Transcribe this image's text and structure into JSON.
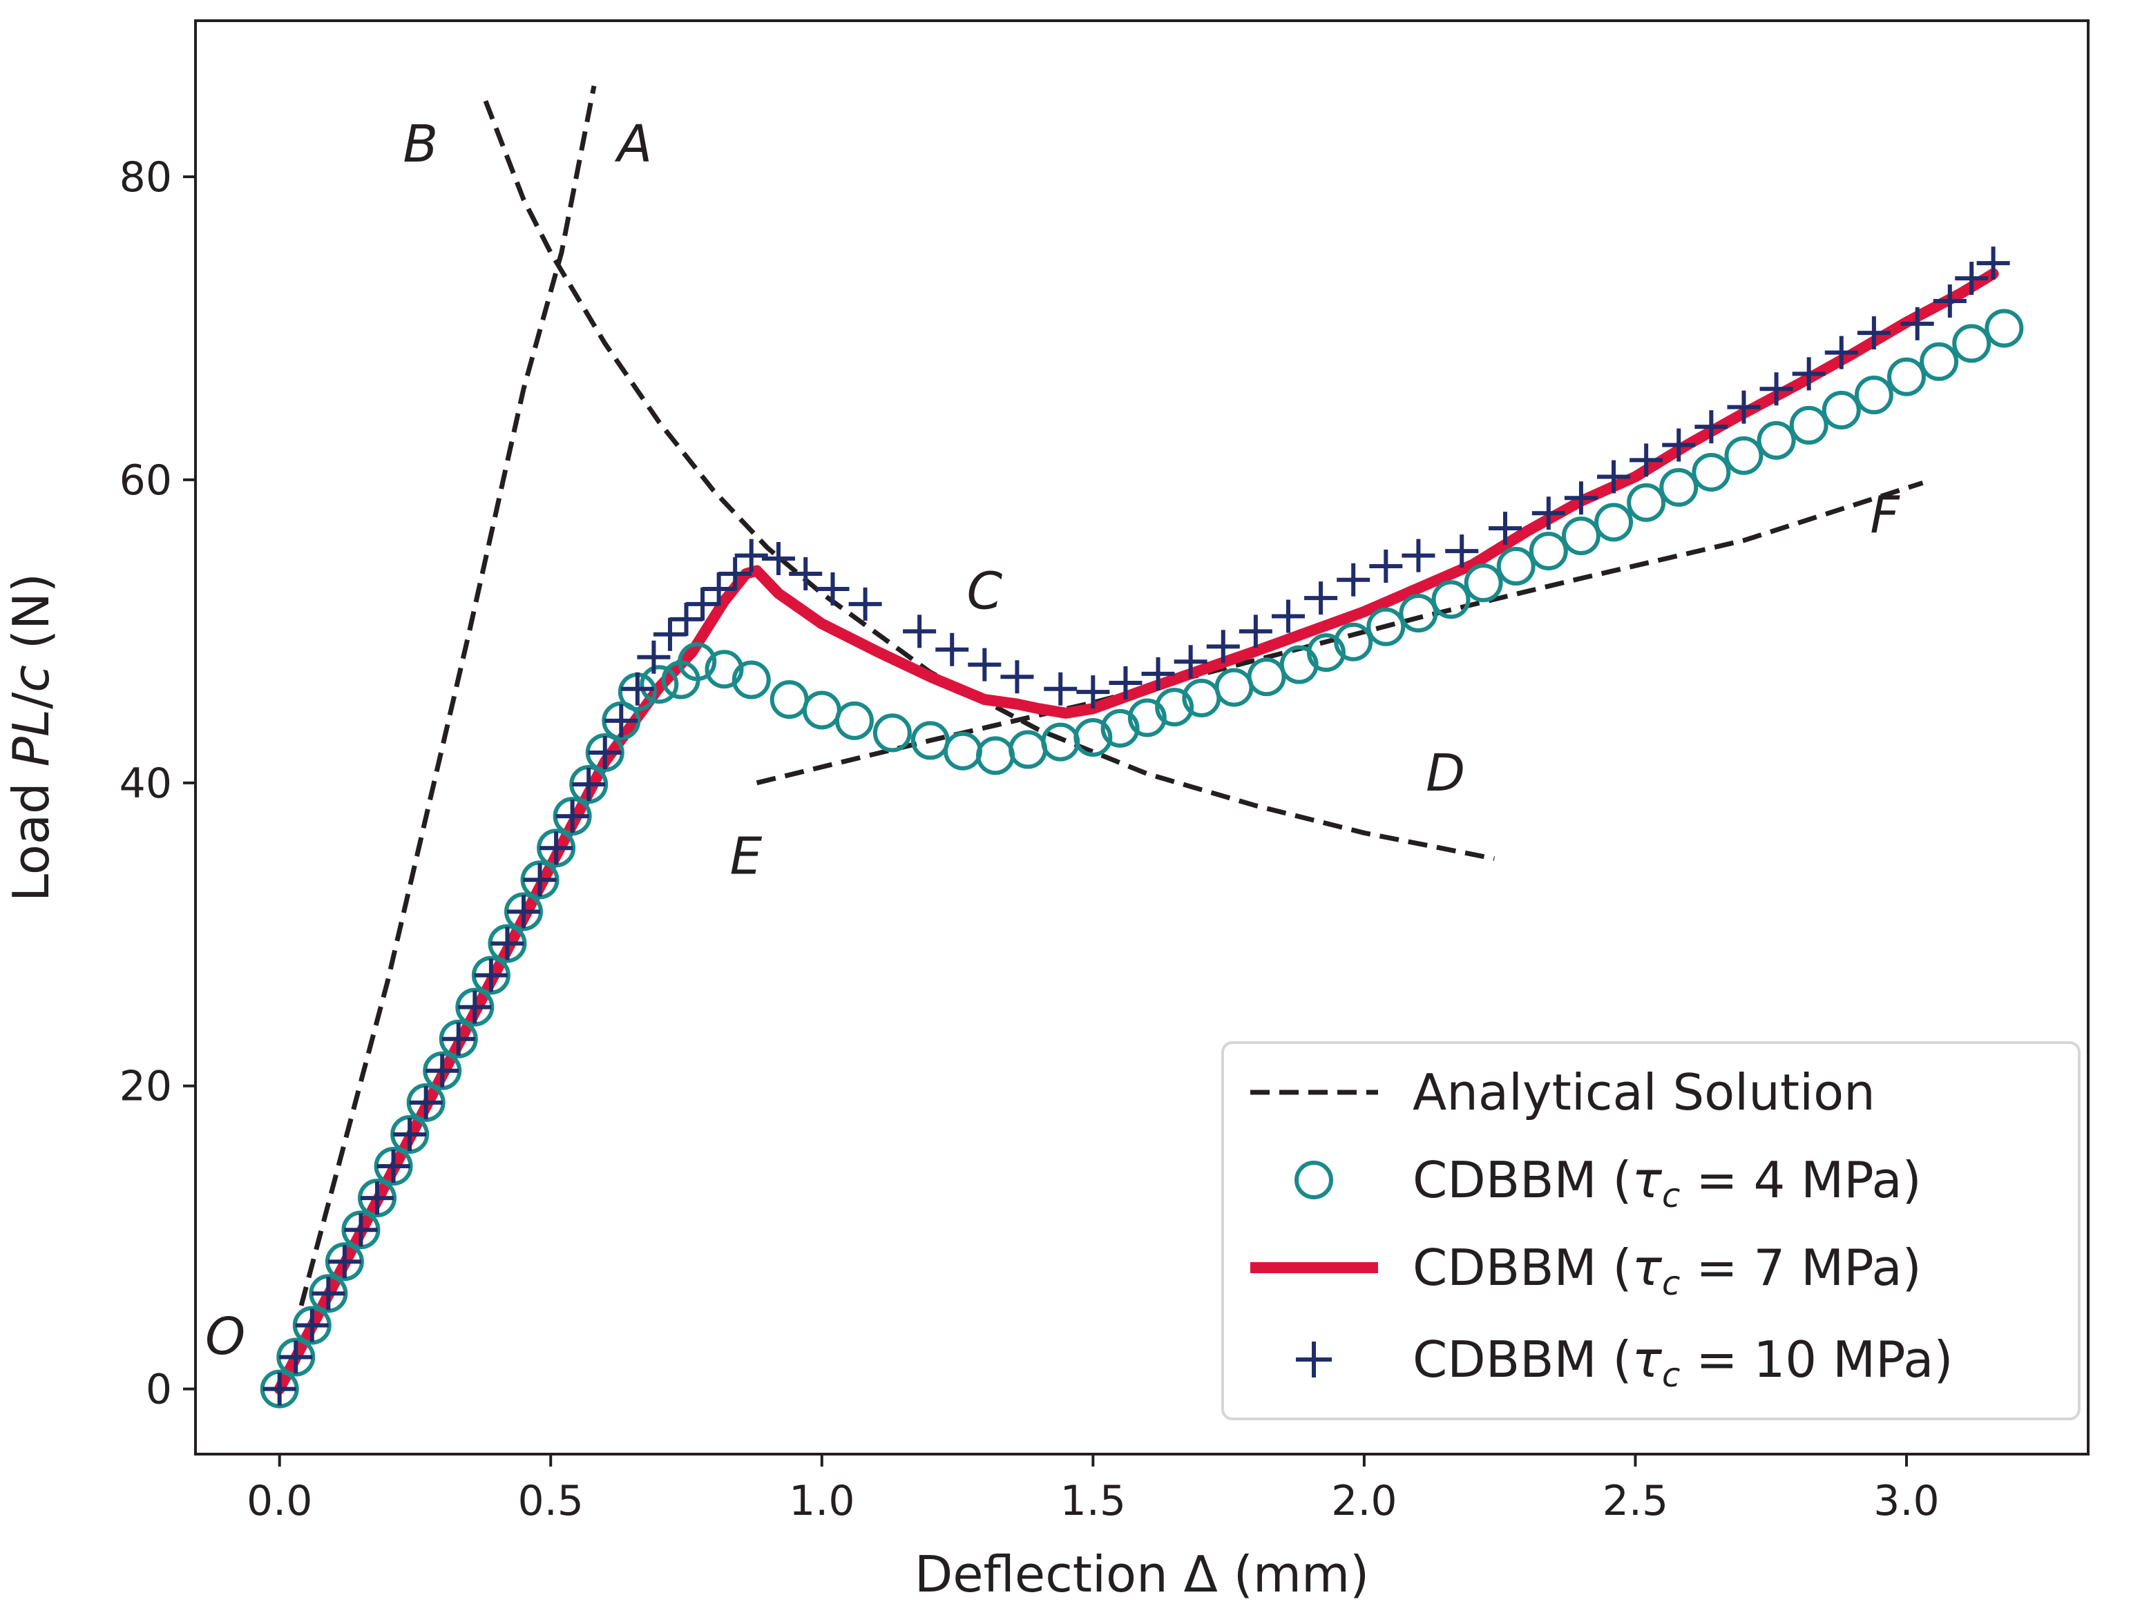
{
  "chart_data": {
    "type": "line",
    "xlabel": "Deflection Δ (mm)",
    "ylabel_parts": [
      "Load ",
      "PL",
      "/",
      "c",
      " (N)"
    ],
    "xlim": [
      -0.155,
      3.335
    ],
    "ylim": [
      -4.3,
      90.3
    ],
    "xticks": [
      0.0,
      0.5,
      1.0,
      1.5,
      2.0,
      2.5,
      3.0
    ],
    "xtick_labels": [
      "0.0",
      "0.5",
      "1.0",
      "1.5",
      "2.0",
      "2.5",
      "3.0"
    ],
    "yticks": [
      0,
      20,
      40,
      60,
      80
    ],
    "ytick_labels": [
      "0",
      "20",
      "40",
      "60",
      "80"
    ],
    "colors": {
      "analytical": "#231f20",
      "tau4": "#1a8a8a",
      "tau7": "#dc143c",
      "tau10": "#1f2d6b",
      "axes": "#231f20"
    },
    "legend": {
      "position": "lower right",
      "entries": [
        {
          "key": "analytical",
          "label": "Analytical Solution"
        },
        {
          "key": "tau4",
          "prefix": "CDBBM (",
          "symbol": "τ",
          "sub": "c",
          "value": " = 4 MPa)"
        },
        {
          "key": "tau7",
          "prefix": "CDBBM (",
          "symbol": "τ",
          "sub": "c",
          "value": " = 7 MPa)"
        },
        {
          "key": "tau10",
          "prefix": "CDBBM (",
          "symbol": "τ",
          "sub": "c",
          "value": " = 10 MPa)"
        }
      ]
    },
    "annotations": [
      {
        "text": "O",
        "x": -0.1,
        "y": 2.3
      },
      {
        "text": "B",
        "x": 0.26,
        "y": 81.0
      },
      {
        "text": "A",
        "x": 0.655,
        "y": 81.0
      },
      {
        "text": "C",
        "x": 1.3,
        "y": 51.5
      },
      {
        "text": "D",
        "x": 2.15,
        "y": 39.5
      },
      {
        "text": "E",
        "x": 0.86,
        "y": 34.0
      },
      {
        "text": "F",
        "x": 2.96,
        "y": 56.5
      }
    ],
    "series": [
      {
        "name": "Analytical Solution OA",
        "key": "analytical",
        "style": "dashed",
        "points": [
          [
            0.04,
            5.5
          ],
          [
            0.2,
            27.0
          ],
          [
            0.35,
            50.0
          ],
          [
            0.45,
            66.0
          ],
          [
            0.52,
            75.0
          ],
          [
            0.58,
            86.0
          ]
        ]
      },
      {
        "name": "Analytical Solution BD",
        "key": "analytical",
        "style": "dashed",
        "points": [
          [
            0.38,
            85.0
          ],
          [
            0.45,
            78.5
          ],
          [
            0.5,
            75.0
          ],
          [
            0.6,
            69.0
          ],
          [
            0.7,
            63.8
          ],
          [
            0.8,
            59.3
          ],
          [
            0.9,
            55.5
          ],
          [
            1.0,
            52.5
          ],
          [
            1.2,
            47.3
          ],
          [
            1.4,
            43.5
          ],
          [
            1.6,
            40.6
          ],
          [
            1.8,
            38.5
          ],
          [
            2.0,
            36.7
          ],
          [
            2.24,
            35.0
          ]
        ]
      },
      {
        "name": "Analytical Solution EF",
        "key": "analytical",
        "style": "dashed",
        "points": [
          [
            0.88,
            40.0
          ],
          [
            1.2,
            42.8
          ],
          [
            1.5,
            45.3
          ],
          [
            1.8,
            48.1
          ],
          [
            2.1,
            50.9
          ],
          [
            2.4,
            53.5
          ],
          [
            2.7,
            56.0
          ],
          [
            3.03,
            59.8
          ]
        ]
      },
      {
        "name": "CDBBM (τc = 7 MPa)",
        "key": "tau7",
        "style": "solid",
        "points": [
          [
            0.0,
            0.0
          ],
          [
            0.1,
            6.9
          ],
          [
            0.2,
            13.8
          ],
          [
            0.3,
            20.7
          ],
          [
            0.4,
            27.6
          ],
          [
            0.5,
            34.5
          ],
          [
            0.6,
            41.4
          ],
          [
            0.7,
            46.3
          ],
          [
            0.76,
            48.6
          ],
          [
            0.82,
            52.0
          ],
          [
            0.86,
            53.8
          ],
          [
            0.88,
            54.0
          ],
          [
            0.92,
            52.5
          ],
          [
            1.0,
            50.5
          ],
          [
            1.1,
            48.7
          ],
          [
            1.2,
            47.0
          ],
          [
            1.3,
            45.5
          ],
          [
            1.36,
            45.2
          ],
          [
            1.4,
            44.9
          ],
          [
            1.45,
            44.6
          ],
          [
            1.5,
            44.9
          ],
          [
            1.6,
            46.2
          ],
          [
            1.8,
            48.7
          ],
          [
            2.0,
            51.3
          ],
          [
            2.2,
            54.4
          ],
          [
            2.3,
            56.6
          ],
          [
            2.4,
            58.6
          ],
          [
            2.5,
            60.2
          ],
          [
            2.6,
            62.4
          ],
          [
            2.7,
            64.4
          ],
          [
            2.8,
            66.3
          ],
          [
            2.9,
            68.3
          ],
          [
            3.0,
            70.4
          ],
          [
            3.1,
            72.3
          ],
          [
            3.16,
            73.6
          ]
        ]
      },
      {
        "name": "CDBBM (τc = 4 MPa)",
        "key": "tau4",
        "style": "circle",
        "points": [
          [
            0.0,
            0.0
          ],
          [
            0.03,
            2.1
          ],
          [
            0.06,
            4.2
          ],
          [
            0.09,
            6.3
          ],
          [
            0.12,
            8.4
          ],
          [
            0.15,
            10.5
          ],
          [
            0.18,
            12.6
          ],
          [
            0.21,
            14.7
          ],
          [
            0.24,
            16.8
          ],
          [
            0.27,
            18.9
          ],
          [
            0.3,
            21.0
          ],
          [
            0.33,
            23.1
          ],
          [
            0.36,
            25.2
          ],
          [
            0.39,
            27.3
          ],
          [
            0.42,
            29.4
          ],
          [
            0.45,
            31.5
          ],
          [
            0.48,
            33.6
          ],
          [
            0.51,
            35.7
          ],
          [
            0.54,
            37.8
          ],
          [
            0.57,
            39.9
          ],
          [
            0.6,
            42.0
          ],
          [
            0.63,
            44.1
          ],
          [
            0.66,
            46.0
          ],
          [
            0.7,
            46.5
          ],
          [
            0.74,
            46.8
          ],
          [
            0.77,
            48.0
          ],
          [
            0.82,
            47.5
          ],
          [
            0.87,
            46.8
          ],
          [
            0.94,
            45.5
          ],
          [
            1.0,
            44.8
          ],
          [
            1.06,
            44.1
          ],
          [
            1.13,
            43.3
          ],
          [
            1.2,
            42.8
          ],
          [
            1.26,
            42.1
          ],
          [
            1.32,
            41.8
          ],
          [
            1.38,
            42.2
          ],
          [
            1.44,
            42.7
          ],
          [
            1.5,
            43.0
          ],
          [
            1.55,
            43.6
          ],
          [
            1.6,
            44.3
          ],
          [
            1.65,
            45.0
          ],
          [
            1.7,
            45.6
          ],
          [
            1.76,
            46.3
          ],
          [
            1.82,
            47.0
          ],
          [
            1.88,
            47.8
          ],
          [
            1.93,
            48.6
          ],
          [
            1.98,
            49.3
          ],
          [
            2.04,
            50.3
          ],
          [
            2.1,
            51.2
          ],
          [
            2.16,
            52.1
          ],
          [
            2.22,
            53.2
          ],
          [
            2.28,
            54.3
          ],
          [
            2.34,
            55.3
          ],
          [
            2.4,
            56.3
          ],
          [
            2.46,
            57.2
          ],
          [
            2.52,
            58.5
          ],
          [
            2.58,
            59.5
          ],
          [
            2.64,
            60.5
          ],
          [
            2.7,
            61.6
          ],
          [
            2.76,
            62.6
          ],
          [
            2.82,
            63.6
          ],
          [
            2.88,
            64.6
          ],
          [
            2.94,
            65.6
          ],
          [
            3.0,
            66.8
          ],
          [
            3.06,
            67.8
          ],
          [
            3.12,
            69.0
          ],
          [
            3.18,
            70.0
          ]
        ]
      },
      {
        "name": "CDBBM (τc = 10 MPa)",
        "key": "tau10",
        "style": "plus",
        "points": [
          [
            0.0,
            0.0
          ],
          [
            0.03,
            2.1
          ],
          [
            0.06,
            4.2
          ],
          [
            0.09,
            6.3
          ],
          [
            0.12,
            8.4
          ],
          [
            0.15,
            10.5
          ],
          [
            0.18,
            12.6
          ],
          [
            0.21,
            14.7
          ],
          [
            0.24,
            16.8
          ],
          [
            0.27,
            18.9
          ],
          [
            0.3,
            21.0
          ],
          [
            0.33,
            23.1
          ],
          [
            0.36,
            25.2
          ],
          [
            0.39,
            27.3
          ],
          [
            0.42,
            29.4
          ],
          [
            0.45,
            31.5
          ],
          [
            0.48,
            33.6
          ],
          [
            0.51,
            35.7
          ],
          [
            0.54,
            37.8
          ],
          [
            0.57,
            39.9
          ],
          [
            0.6,
            42.0
          ],
          [
            0.63,
            44.1
          ],
          [
            0.66,
            46.2
          ],
          [
            0.69,
            48.3
          ],
          [
            0.72,
            49.8
          ],
          [
            0.75,
            50.8
          ],
          [
            0.78,
            51.8
          ],
          [
            0.81,
            52.8
          ],
          [
            0.84,
            53.8
          ],
          [
            0.87,
            55.0
          ],
          [
            0.92,
            54.8
          ],
          [
            0.97,
            53.8
          ],
          [
            1.02,
            52.8
          ],
          [
            1.08,
            51.8
          ],
          [
            1.18,
            50.0
          ],
          [
            1.24,
            48.8
          ],
          [
            1.3,
            47.8
          ],
          [
            1.36,
            47.0
          ],
          [
            1.44,
            46.2
          ],
          [
            1.5,
            46.0
          ],
          [
            1.56,
            46.6
          ],
          [
            1.62,
            47.2
          ],
          [
            1.68,
            48.0
          ],
          [
            1.74,
            49.0
          ],
          [
            1.8,
            50.0
          ],
          [
            1.86,
            51.0
          ],
          [
            1.92,
            52.2
          ],
          [
            1.98,
            53.4
          ],
          [
            2.04,
            54.3
          ],
          [
            2.1,
            55.0
          ],
          [
            2.18,
            55.3
          ],
          [
            2.26,
            56.8
          ],
          [
            2.34,
            57.8
          ],
          [
            2.4,
            58.8
          ],
          [
            2.46,
            60.2
          ],
          [
            2.52,
            61.3
          ],
          [
            2.58,
            62.3
          ],
          [
            2.64,
            63.5
          ],
          [
            2.7,
            64.8
          ],
          [
            2.76,
            66.0
          ],
          [
            2.82,
            67.0
          ],
          [
            2.88,
            68.4
          ],
          [
            2.94,
            69.7
          ],
          [
            3.02,
            70.3
          ],
          [
            3.08,
            71.8
          ],
          [
            3.12,
            73.3
          ],
          [
            3.16,
            74.3
          ]
        ]
      }
    ]
  }
}
